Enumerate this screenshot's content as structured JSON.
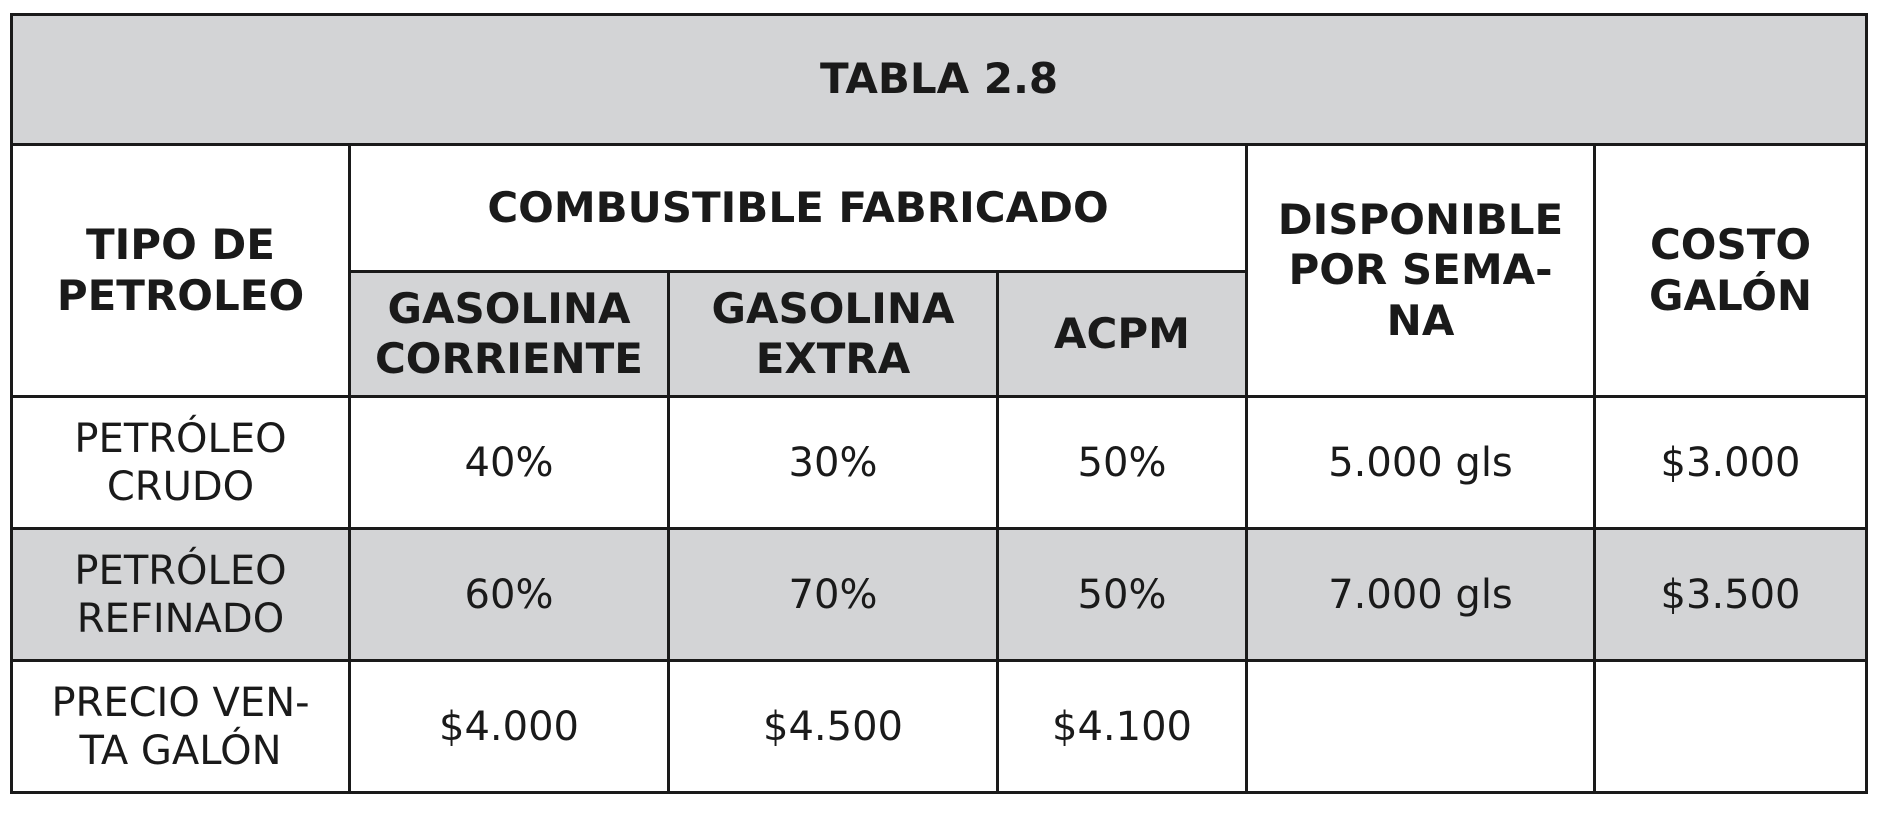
{
  "title": "TABLA 2.8",
  "headers": {
    "tipo": [
      "TIPO DE",
      "PETROLEO"
    ],
    "combustible": "COMBUSTIBLE FABRICADO",
    "disponible": [
      "DISPONIBLE",
      "POR SEMA-",
      "NA"
    ],
    "costo": [
      "COSTO",
      "GALÓN"
    ],
    "sub": [
      [
        "GASOLINA",
        "CORRIENTE"
      ],
      [
        "GASOLINA",
        "EXTRA"
      ],
      [
        "ACPM"
      ]
    ]
  },
  "rows": [
    {
      "label": [
        "PETRÓLEO",
        "CRUDO"
      ],
      "corriente": "40%",
      "extra": "30%",
      "acpm": "50%",
      "disponible": "5.000 gls",
      "costo": "$3.000"
    },
    {
      "label": [
        "PETRÓLEO",
        "REFINADO"
      ],
      "corriente": "60%",
      "extra": "70%",
      "acpm": "50%",
      "disponible": "7.000 gls",
      "costo": "$3.500"
    },
    {
      "label": [
        "PRECIO VEN-",
        "TA GALÓN"
      ],
      "corriente": "$4.000",
      "extra": "$4.500",
      "acpm": "$4.100",
      "disponible": "",
      "costo": ""
    }
  ],
  "colors": {
    "header_gray": "#d3d4d6",
    "border": "#1a1a1a",
    "text": "#1a1a1a"
  }
}
